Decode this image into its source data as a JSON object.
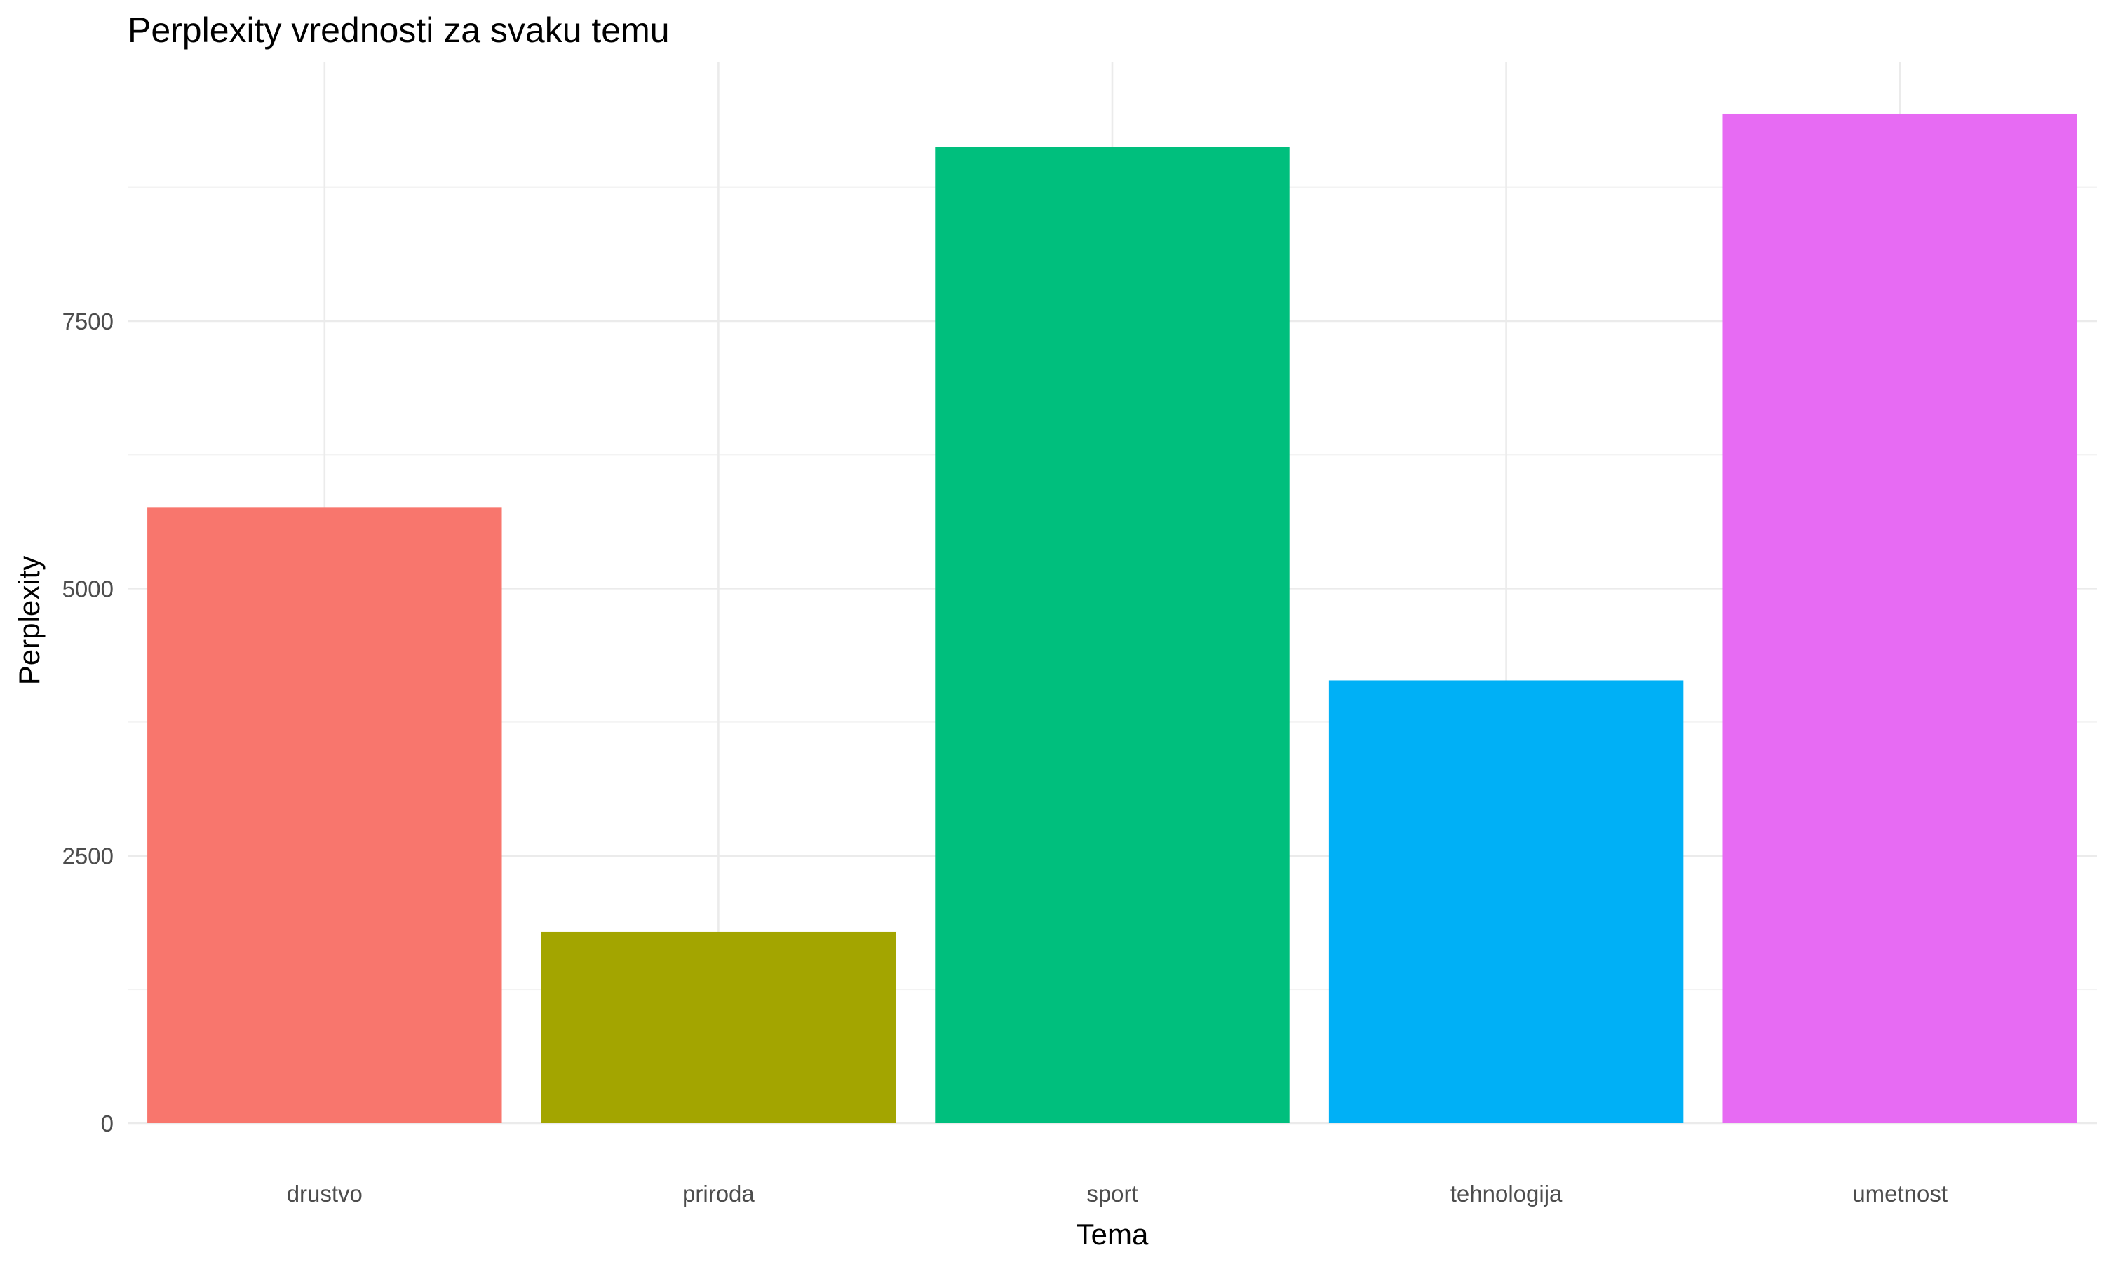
{
  "chart_data": {
    "type": "bar",
    "title": "Perplexity vrednosti za svaku temu",
    "xlabel": "Tema",
    "ylabel": "Perplexity",
    "categories": [
      "drustvo",
      "priroda",
      "sport",
      "tehnologija",
      "umetnost"
    ],
    "values": [
      5760,
      1790,
      9130,
      4140,
      9440
    ],
    "colors": [
      "#F8766D",
      "#A3A500",
      "#00BF7D",
      "#00B0F6",
      "#E76BF3"
    ],
    "ylim": [
      0,
      9925
    ],
    "y_ticks": [
      0,
      2500,
      5000,
      7500
    ],
    "y_tick_labels": [
      "0",
      "2500",
      "5000",
      "7500"
    ],
    "grid": true,
    "legend": "none"
  }
}
